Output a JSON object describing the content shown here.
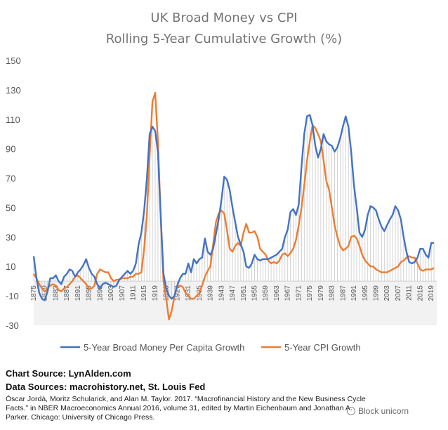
{
  "chart_data": {
    "type": "line",
    "title_line1": "UK Broad Money vs CPI",
    "title_line2": "Rolling 5-Year Cumulative Growth (%)",
    "ylim": [
      -30,
      150
    ],
    "yticks": [
      -30,
      -10,
      10,
      30,
      50,
      70,
      90,
      110,
      130,
      150
    ],
    "xlim": [
      1875,
      2021
    ],
    "xticks": [
      1875,
      1879,
      1883,
      1887,
      1891,
      1895,
      1899,
      1903,
      1907,
      1911,
      1915,
      1919,
      1923,
      1927,
      1931,
      1935,
      1939,
      1943,
      1947,
      1951,
      1955,
      1959,
      1963,
      1967,
      1971,
      1975,
      1979,
      1983,
      1987,
      1991,
      1995,
      1999,
      2003,
      2007,
      2011,
      2015,
      2019
    ],
    "legend_position": "bottom",
    "series": [
      {
        "name": "5-Year Broad Money Per Capita Growth",
        "color": "#4472C4",
        "points": [
          [
            1875,
            17
          ],
          [
            1876,
            2
          ],
          [
            1877,
            -8
          ],
          [
            1878,
            -12
          ],
          [
            1879,
            -13
          ],
          [
            1880,
            -7
          ],
          [
            1881,
            2
          ],
          [
            1882,
            2
          ],
          [
            1883,
            4
          ],
          [
            1884,
            0
          ],
          [
            1885,
            -2
          ],
          [
            1886,
            3
          ],
          [
            1887,
            5
          ],
          [
            1888,
            8
          ],
          [
            1889,
            7
          ],
          [
            1890,
            3
          ],
          [
            1891,
            6
          ],
          [
            1892,
            8
          ],
          [
            1893,
            11
          ],
          [
            1894,
            15
          ],
          [
            1895,
            9
          ],
          [
            1896,
            5
          ],
          [
            1897,
            3
          ],
          [
            1898,
            -2
          ],
          [
            1899,
            -5
          ],
          [
            1900,
            -2
          ],
          [
            1901,
            -1
          ],
          [
            1902,
            -2
          ],
          [
            1903,
            -3
          ],
          [
            1904,
            -4
          ],
          [
            1905,
            -3
          ],
          [
            1906,
            1
          ],
          [
            1907,
            3
          ],
          [
            1908,
            5
          ],
          [
            1909,
            7
          ],
          [
            1910,
            5
          ],
          [
            1911,
            7
          ],
          [
            1912,
            12
          ],
          [
            1913,
            25
          ],
          [
            1914,
            33
          ],
          [
            1915,
            48
          ],
          [
            1916,
            70
          ],
          [
            1917,
            100
          ],
          [
            1918,
            105
          ],
          [
            1919,
            102
          ],
          [
            1920,
            88
          ],
          [
            1921,
            45
          ],
          [
            1922,
            5
          ],
          [
            1923,
            -5
          ],
          [
            1924,
            -10
          ],
          [
            1925,
            -12
          ],
          [
            1926,
            -10
          ],
          [
            1927,
            -3
          ],
          [
            1928,
            2
          ],
          [
            1929,
            5
          ],
          [
            1930,
            5
          ],
          [
            1931,
            12
          ],
          [
            1932,
            6
          ],
          [
            1933,
            15
          ],
          [
            1934,
            12
          ],
          [
            1935,
            15
          ],
          [
            1936,
            16
          ],
          [
            1937,
            29
          ],
          [
            1938,
            20
          ],
          [
            1939,
            18
          ],
          [
            1940,
            22
          ],
          [
            1941,
            32
          ],
          [
            1942,
            42
          ],
          [
            1943,
            55
          ],
          [
            1944,
            71
          ],
          [
            1945,
            69
          ],
          [
            1946,
            62
          ],
          [
            1947,
            50
          ],
          [
            1948,
            40
          ],
          [
            1949,
            30
          ],
          [
            1950,
            25
          ],
          [
            1951,
            20
          ],
          [
            1952,
            10
          ],
          [
            1953,
            9
          ],
          [
            1954,
            12
          ],
          [
            1955,
            18
          ],
          [
            1956,
            15
          ],
          [
            1957,
            14
          ],
          [
            1958,
            15
          ],
          [
            1959,
            15
          ],
          [
            1960,
            15
          ],
          [
            1961,
            16
          ],
          [
            1962,
            17
          ],
          [
            1963,
            18
          ],
          [
            1964,
            20
          ],
          [
            1965,
            22
          ],
          [
            1966,
            30
          ],
          [
            1967,
            35
          ],
          [
            1968,
            47
          ],
          [
            1969,
            49
          ],
          [
            1970,
            45
          ],
          [
            1971,
            52
          ],
          [
            1972,
            78
          ],
          [
            1973,
            100
          ],
          [
            1974,
            112
          ],
          [
            1975,
            113
          ],
          [
            1976,
            106
          ],
          [
            1977,
            92
          ],
          [
            1978,
            84
          ],
          [
            1979,
            90
          ],
          [
            1980,
            100
          ],
          [
            1981,
            95
          ],
          [
            1982,
            93
          ],
          [
            1983,
            92
          ],
          [
            1984,
            88
          ],
          [
            1985,
            91
          ],
          [
            1986,
            97
          ],
          [
            1987,
            105
          ],
          [
            1988,
            112
          ],
          [
            1989,
            105
          ],
          [
            1990,
            88
          ],
          [
            1991,
            65
          ],
          [
            1992,
            50
          ],
          [
            1993,
            33
          ],
          [
            1994,
            30
          ],
          [
            1995,
            35
          ],
          [
            1996,
            45
          ],
          [
            1997,
            51
          ],
          [
            1998,
            50
          ],
          [
            1999,
            48
          ],
          [
            2000,
            42
          ],
          [
            2001,
            37
          ],
          [
            2002,
            34
          ],
          [
            2003,
            38
          ],
          [
            2004,
            42
          ],
          [
            2005,
            45
          ],
          [
            2006,
            51
          ],
          [
            2007,
            48
          ],
          [
            2008,
            42
          ],
          [
            2009,
            30
          ],
          [
            2010,
            20
          ],
          [
            2011,
            13
          ],
          [
            2012,
            12
          ],
          [
            2013,
            13
          ],
          [
            2014,
            16
          ],
          [
            2015,
            22
          ],
          [
            2016,
            22
          ],
          [
            2017,
            18
          ],
          [
            2018,
            16
          ],
          [
            2019,
            26
          ],
          [
            2020,
            26
          ]
        ]
      },
      {
        "name": "5-Year CPI Growth",
        "color": "#ED7D31",
        "points": [
          [
            1875,
            5
          ],
          [
            1876,
            2
          ],
          [
            1877,
            -2
          ],
          [
            1878,
            -5
          ],
          [
            1879,
            -7
          ],
          [
            1880,
            -5
          ],
          [
            1881,
            -3
          ],
          [
            1882,
            -2
          ],
          [
            1883,
            -3
          ],
          [
            1884,
            -6
          ],
          [
            1885,
            -7
          ],
          [
            1886,
            -5
          ],
          [
            1887,
            -4
          ],
          [
            1888,
            -2
          ],
          [
            1889,
            0
          ],
          [
            1890,
            3
          ],
          [
            1891,
            4
          ],
          [
            1892,
            2
          ],
          [
            1893,
            0
          ],
          [
            1894,
            -2
          ],
          [
            1895,
            -5
          ],
          [
            1896,
            -5
          ],
          [
            1897,
            -3
          ],
          [
            1898,
            5
          ],
          [
            1899,
            8
          ],
          [
            1900,
            7
          ],
          [
            1901,
            6
          ],
          [
            1902,
            6
          ],
          [
            1903,
            2
          ],
          [
            1904,
            0
          ],
          [
            1905,
            1
          ],
          [
            1906,
            1
          ],
          [
            1907,
            2
          ],
          [
            1908,
            2
          ],
          [
            1909,
            2
          ],
          [
            1910,
            3
          ],
          [
            1911,
            3
          ],
          [
            1912,
            5
          ],
          [
            1913,
            5
          ],
          [
            1914,
            6
          ],
          [
            1915,
            22
          ],
          [
            1916,
            45
          ],
          [
            1917,
            85
          ],
          [
            1918,
            122
          ],
          [
            1919,
            128
          ],
          [
            1920,
            95
          ],
          [
            1921,
            45
          ],
          [
            1922,
            0
          ],
          [
            1923,
            -12
          ],
          [
            1924,
            -26
          ],
          [
            1925,
            -20
          ],
          [
            1926,
            -10
          ],
          [
            1927,
            -4
          ],
          [
            1928,
            -3
          ],
          [
            1929,
            -4
          ],
          [
            1930,
            -8
          ],
          [
            1931,
            -10
          ],
          [
            1932,
            -12
          ],
          [
            1933,
            -12
          ],
          [
            1934,
            -10
          ],
          [
            1935,
            -8
          ],
          [
            1936,
            -3
          ],
          [
            1937,
            3
          ],
          [
            1938,
            7
          ],
          [
            1939,
            10
          ],
          [
            1940,
            25
          ],
          [
            1941,
            40
          ],
          [
            1942,
            46
          ],
          [
            1943,
            48
          ],
          [
            1944,
            46
          ],
          [
            1945,
            35
          ],
          [
            1946,
            22
          ],
          [
            1947,
            20
          ],
          [
            1948,
            24
          ],
          [
            1949,
            26
          ],
          [
            1950,
            24
          ],
          [
            1951,
            33
          ],
          [
            1952,
            39
          ],
          [
            1953,
            33
          ],
          [
            1954,
            33
          ],
          [
            1955,
            34
          ],
          [
            1956,
            30
          ],
          [
            1957,
            22
          ],
          [
            1958,
            20
          ],
          [
            1959,
            18
          ],
          [
            1960,
            14
          ],
          [
            1961,
            12
          ],
          [
            1962,
            13
          ],
          [
            1963,
            12
          ],
          [
            1964,
            14
          ],
          [
            1965,
            18
          ],
          [
            1966,
            19
          ],
          [
            1967,
            17
          ],
          [
            1968,
            19
          ],
          [
            1969,
            22
          ],
          [
            1970,
            28
          ],
          [
            1971,
            38
          ],
          [
            1972,
            50
          ],
          [
            1973,
            65
          ],
          [
            1974,
            82
          ],
          [
            1975,
            95
          ],
          [
            1976,
            106
          ],
          [
            1977,
            104
          ],
          [
            1978,
            100
          ],
          [
            1979,
            95
          ],
          [
            1980,
            82
          ],
          [
            1981,
            68
          ],
          [
            1982,
            62
          ],
          [
            1983,
            50
          ],
          [
            1984,
            38
          ],
          [
            1985,
            30
          ],
          [
            1986,
            24
          ],
          [
            1987,
            21
          ],
          [
            1988,
            22
          ],
          [
            1989,
            24
          ],
          [
            1990,
            30
          ],
          [
            1991,
            31
          ],
          [
            1992,
            29
          ],
          [
            1993,
            24
          ],
          [
            1994,
            18
          ],
          [
            1995,
            14
          ],
          [
            1996,
            12
          ],
          [
            1997,
            10
          ],
          [
            1998,
            10
          ],
          [
            1999,
            8
          ],
          [
            2000,
            7
          ],
          [
            2001,
            6
          ],
          [
            2002,
            6
          ],
          [
            2003,
            6
          ],
          [
            2004,
            7
          ],
          [
            2005,
            8
          ],
          [
            2006,
            9
          ],
          [
            2007,
            10
          ],
          [
            2008,
            13
          ],
          [
            2009,
            14
          ],
          [
            2010,
            16
          ],
          [
            2011,
            17
          ],
          [
            2012,
            16
          ],
          [
            2013,
            16
          ],
          [
            2014,
            12
          ],
          [
            2015,
            8
          ],
          [
            2016,
            7
          ],
          [
            2017,
            8
          ],
          [
            2018,
            8
          ],
          [
            2019,
            8
          ],
          [
            2020,
            9
          ]
        ]
      }
    ]
  },
  "footer": {
    "chart_source": "Chart Source: LynAlden.com",
    "data_sources": "Data Sources: macrohistory.net, St. Louis Fed",
    "citation": "Òscar Jordà, Moritz Schularick, and Alan M. Taylor. 2017. “Macrofinancial History and the New Business Cycle Facts.” in NBER Macroeconomics Annual 2016, volume 31, edited by Martin Eichenbaum and Jonathan A. Parker. Chicago: University of Chicago Press."
  },
  "watermark": {
    "text": "Block unicorn",
    "icon": "circle-logo-icon"
  }
}
